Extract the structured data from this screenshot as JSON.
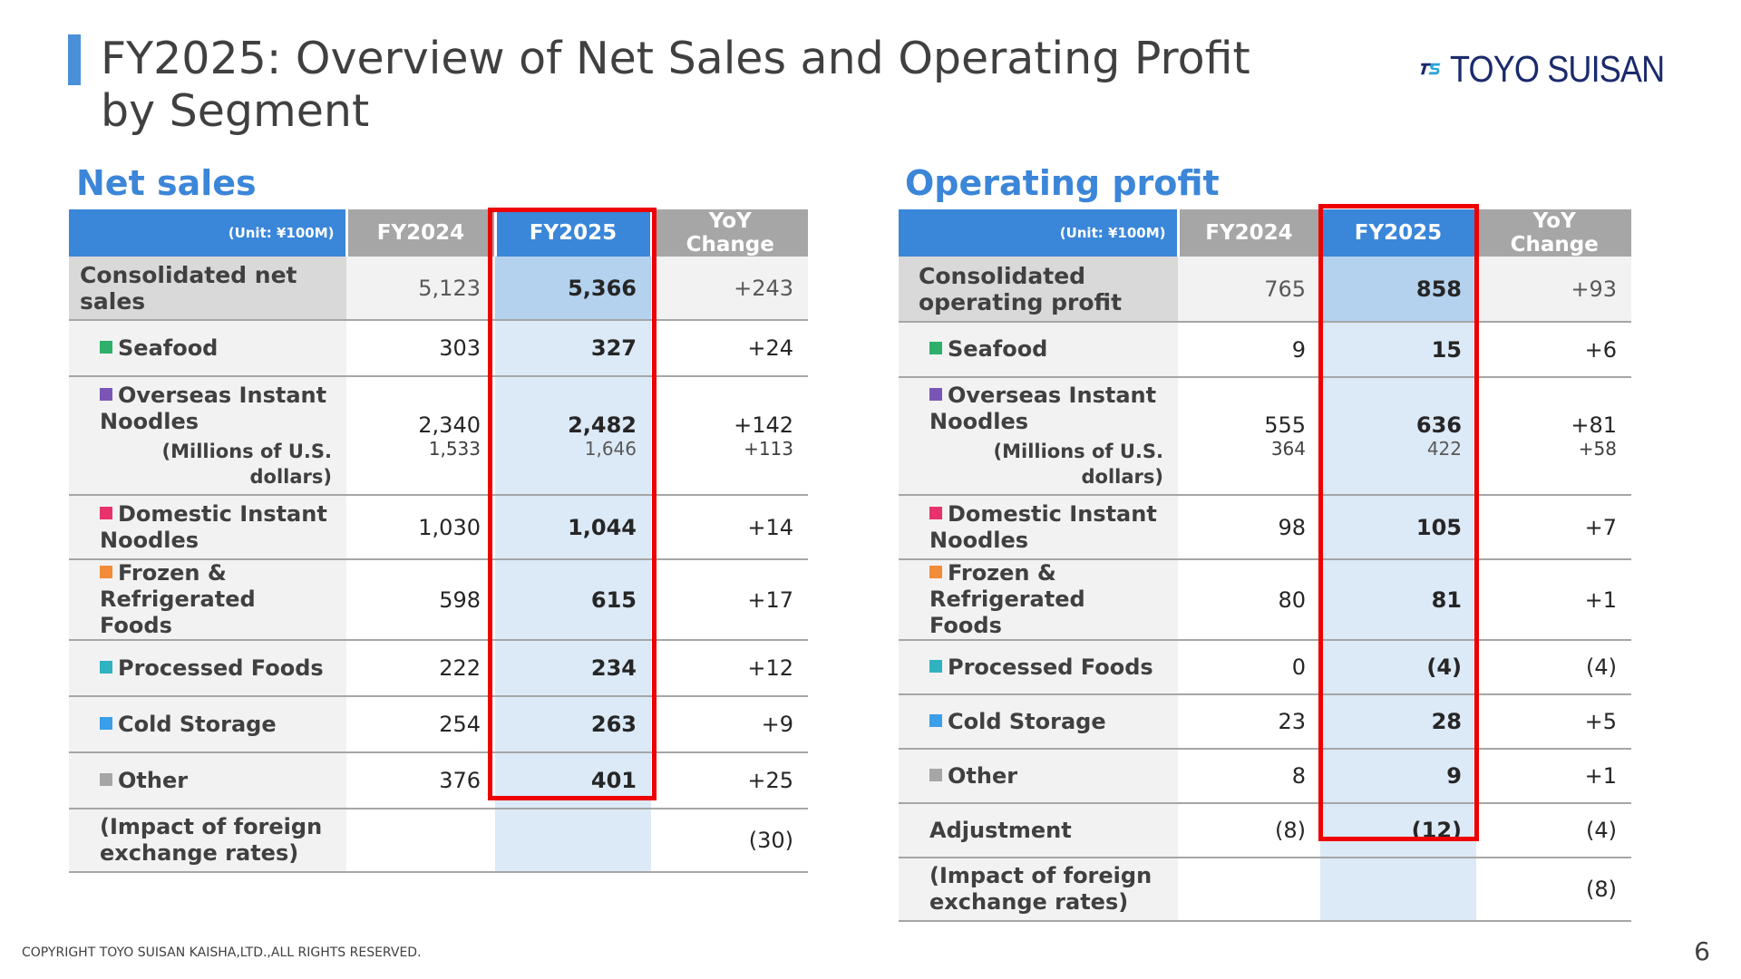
{
  "slide": {
    "title": "FY2025: Overview of Net Sales and Operating Profit by Segment",
    "logo_text": "TOYO SUISAN",
    "footer": "COPYRIGHT TOYO SUISAN KAISHA,LTD.,ALL RIGHTS RESERVED.",
    "page_number": "6"
  },
  "colors": {
    "accent_blue": "#3a86d9",
    "header_gray": "#a6a6a6",
    "highlight_red": "#ee0000",
    "fy2025_fill": "#dce9f6",
    "seafood": "#2eb06a",
    "overseas": "#7b55b5",
    "domestic": "#e8326c",
    "frozen": "#f28c38",
    "processed": "#2fb3c0",
    "cold_storage": "#3a9ee8",
    "other": "#a6a6a6"
  },
  "net_sales": {
    "heading": "Net sales",
    "columns": {
      "unit": "(Unit: ¥100M)",
      "fy2024": "FY2024",
      "fy2025": "FY2025",
      "yoy": "YoY Change"
    },
    "consolidated": {
      "label": "Consolidated net sales",
      "fy2024": "5,123",
      "fy2025": "5,366",
      "yoy": "+243"
    },
    "seafood": {
      "label": "Seafood",
      "fy2024": "303",
      "fy2025": "327",
      "yoy": "+24"
    },
    "overseas": {
      "label": "Overseas Instant Noodles",
      "sub_label": "(Millions of U.S. dollars)",
      "fy2024": "2,340",
      "fy2024_usd": "1,533",
      "fy2025": "2,482",
      "fy2025_usd": "1,646",
      "yoy": "+142",
      "yoy_usd": "+113"
    },
    "domestic": {
      "label": "Domestic Instant Noodles",
      "fy2024": "1,030",
      "fy2025": "1,044",
      "yoy": "+14"
    },
    "frozen": {
      "label": "Frozen & Refrigerated Foods",
      "fy2024": "598",
      "fy2025": "615",
      "yoy": "+17"
    },
    "processed": {
      "label": "Processed Foods",
      "fy2024": "222",
      "fy2025": "234",
      "yoy": "+12"
    },
    "cold_storage": {
      "label": "Cold Storage",
      "fy2024": "254",
      "fy2025": "263",
      "yoy": "+9"
    },
    "other": {
      "label": "Other",
      "fy2024": "376",
      "fy2025": "401",
      "yoy": "+25"
    },
    "fx_impact": {
      "label": "(Impact of foreign exchange rates)",
      "yoy": "(30)"
    }
  },
  "operating_profit": {
    "heading": "Operating profit",
    "columns": {
      "unit": "(Unit: ¥100M)",
      "fy2024": "FY2024",
      "fy2025": "FY2025",
      "yoy": "YoY Change"
    },
    "consolidated": {
      "label": "Consolidated operating profit",
      "fy2024": "765",
      "fy2025": "858",
      "yoy": "+93"
    },
    "seafood": {
      "label": "Seafood",
      "fy2024": "9",
      "fy2025": "15",
      "yoy": "+6"
    },
    "overseas": {
      "label": "Overseas Instant Noodles",
      "sub_label": "(Millions of U.S. dollars)",
      "fy2024": "555",
      "fy2024_usd": "364",
      "fy2025": "636",
      "fy2025_usd": "422",
      "yoy": "+81",
      "yoy_usd": "+58"
    },
    "domestic": {
      "label": "Domestic Instant Noodles",
      "fy2024": "98",
      "fy2025": "105",
      "yoy": "+7"
    },
    "frozen": {
      "label": "Frozen & Refrigerated Foods",
      "fy2024": "80",
      "fy2025": "81",
      "yoy": "+1"
    },
    "processed": {
      "label": "Processed Foods",
      "fy2024": "0",
      "fy2025": "(4)",
      "yoy": "(4)"
    },
    "cold_storage": {
      "label": "Cold Storage",
      "fy2024": "23",
      "fy2025": "28",
      "yoy": "+5"
    },
    "other": {
      "label": "Other",
      "fy2024": "8",
      "fy2025": "9",
      "yoy": "+1"
    },
    "adjustment": {
      "label": "Adjustment",
      "fy2024": "(8)",
      "fy2025": "(12)",
      "yoy": "(4)"
    },
    "fx_impact": {
      "label": "(Impact of foreign exchange rates)",
      "yoy": "(8)"
    }
  }
}
